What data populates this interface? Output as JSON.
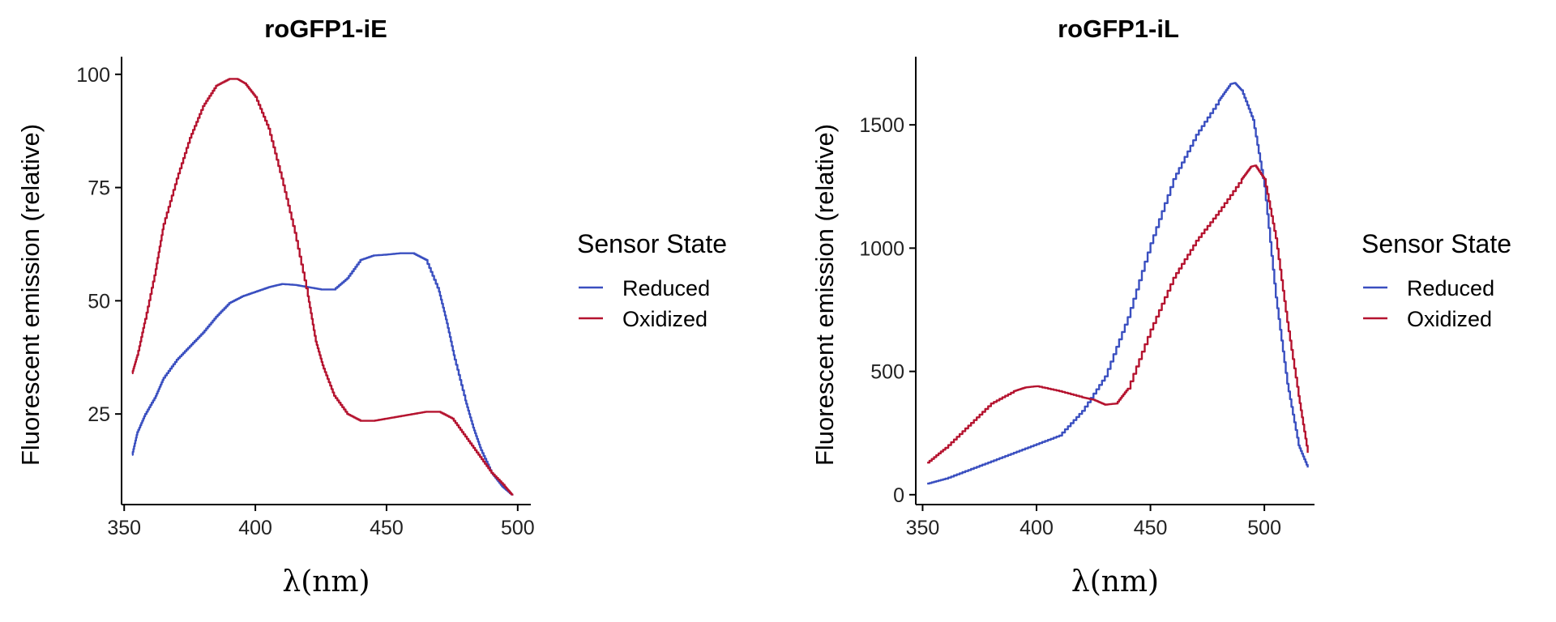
{
  "chart_data": [
    {
      "type": "line",
      "title": "roGFP1-iE",
      "xlabel": "λ(nm)",
      "ylabel": "Fluorescent emission (relative)",
      "xlim": [
        349,
        505
      ],
      "ylim": [
        5,
        103
      ],
      "xticks": [
        "350",
        "400",
        "450",
        "500"
      ],
      "yticks": [
        "25",
        "50",
        "75",
        "100"
      ],
      "grid": false,
      "legend": {
        "title": "Sensor State",
        "position": "right"
      },
      "series": [
        {
          "name": "Reduced",
          "color": "#3A4FC0",
          "x": [
            353,
            355,
            358,
            362,
            365,
            370,
            375,
            380,
            385,
            390,
            395,
            400,
            405,
            410,
            415,
            420,
            425,
            430,
            435,
            440,
            445,
            450,
            455,
            460,
            465,
            470,
            473,
            476,
            480,
            483,
            486,
            490,
            494,
            498
          ],
          "y": [
            16,
            21,
            25,
            29,
            33,
            37,
            40,
            43,
            46.5,
            49.5,
            51,
            52,
            53,
            53.7,
            53.5,
            53,
            52.5,
            52.5,
            55,
            59,
            60,
            60.2,
            60.5,
            60.5,
            59,
            52,
            45,
            37,
            28,
            22,
            17,
            12,
            9,
            7
          ]
        },
        {
          "name": "Oxidized",
          "color": "#B5132F",
          "x": [
            353,
            355,
            358,
            362,
            365,
            370,
            375,
            380,
            385,
            390,
            393,
            396,
            400,
            405,
            410,
            415,
            420,
            423,
            426,
            430,
            435,
            440,
            445,
            450,
            455,
            460,
            465,
            470,
            475,
            480,
            485,
            490,
            495,
            498
          ],
          "y": [
            34,
            38,
            46,
            57,
            67,
            77,
            86,
            93,
            97.5,
            99,
            99,
            98,
            95,
            88,
            77,
            65,
            51,
            41,
            35,
            29,
            25,
            23.5,
            23.5,
            24,
            24.5,
            25,
            25.5,
            25.5,
            24,
            20,
            16,
            12,
            9,
            7
          ]
        }
      ]
    },
    {
      "type": "line",
      "title": "roGFP1-iL",
      "xlabel": "λ(nm)",
      "ylabel": "Fluorescent emission (relative)",
      "xlim": [
        347,
        522
      ],
      "ylim": [
        -40,
        1760
      ],
      "xticks": [
        "350",
        "400",
        "450",
        "500"
      ],
      "yticks": [
        "0",
        "500",
        "1000",
        "1500"
      ],
      "grid": false,
      "legend": {
        "title": "Sensor State",
        "position": "right"
      },
      "series": [
        {
          "name": "Reduced",
          "color": "#3A4FC0",
          "x": [
            352,
            360,
            370,
            380,
            390,
            400,
            410,
            420,
            430,
            440,
            450,
            460,
            470,
            480,
            485,
            487,
            490,
            495,
            500,
            505,
            510,
            515,
            519
          ],
          "y": [
            45,
            65,
            100,
            135,
            170,
            205,
            240,
            340,
            480,
            720,
            1020,
            1280,
            1460,
            1600,
            1665,
            1670,
            1640,
            1520,
            1250,
            800,
            450,
            200,
            110
          ]
        },
        {
          "name": "Oxidized",
          "color": "#B5132F",
          "x": [
            352,
            360,
            370,
            380,
            390,
            395,
            400,
            410,
            420,
            425,
            430,
            435,
            440,
            450,
            460,
            470,
            480,
            490,
            494,
            496,
            500,
            505,
            510,
            515,
            519
          ],
          "y": [
            130,
            190,
            280,
            370,
            420,
            435,
            440,
            420,
            395,
            385,
            365,
            370,
            430,
            670,
            880,
            1030,
            1150,
            1280,
            1330,
            1335,
            1280,
            1040,
            700,
            400,
            170
          ]
        }
      ]
    }
  ]
}
